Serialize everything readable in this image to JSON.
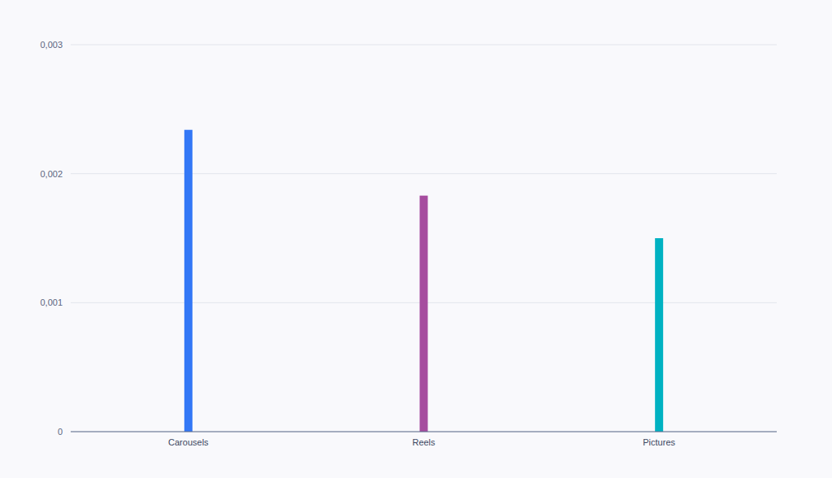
{
  "chart_data": {
    "type": "bar",
    "categories": [
      "Carousels",
      "Reels",
      "Pictures"
    ],
    "values": [
      0.00234,
      0.00183,
      0.0015
    ],
    "colors": [
      "#3478f6",
      "#a64d9f",
      "#00b2c2"
    ],
    "ylim": [
      0,
      0.003
    ],
    "yticks": [
      0,
      {
        "value": 0.001,
        "label": "0,001"
      },
      {
        "value": 0.002,
        "label": "0,002"
      },
      {
        "value": 0.003,
        "label": "0,003"
      }
    ],
    "grid": true
  }
}
